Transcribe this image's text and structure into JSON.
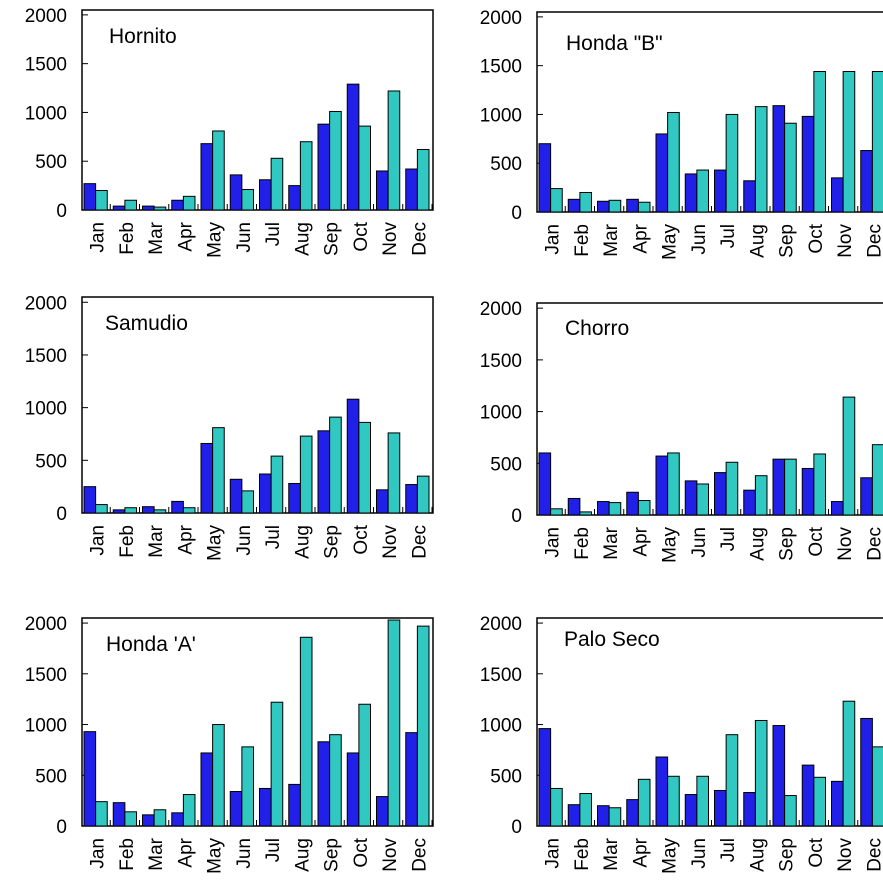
{
  "chart_data": [
    {
      "type": "bar",
      "title": "Hornito",
      "categories": [
        "Jan",
        "Feb",
        "Mar",
        "Apr",
        "May",
        "Jun",
        "Jul",
        "Aug",
        "Sep",
        "Oct",
        "Nov",
        "Dec"
      ],
      "yticks": [
        "0",
        "500",
        "1000",
        "1500",
        "2000"
      ],
      "ylim": [
        0,
        2050
      ],
      "series": [
        {
          "values": [
            270,
            40,
            40,
            100,
            680,
            360,
            310,
            250,
            880,
            1290,
            400,
            420
          ],
          "color": "#2020e8"
        },
        {
          "values": [
            200,
            100,
            30,
            140,
            810,
            210,
            530,
            700,
            1010,
            860,
            1220,
            620
          ],
          "color": "#30c8c0"
        }
      ]
    },
    {
      "type": "bar",
      "title": "Honda \"B\"",
      "categories": [
        "Jan",
        "Feb",
        "Mar",
        "Apr",
        "May",
        "Jun",
        "Jul",
        "Aug",
        "Sep",
        "Oct",
        "Nov",
        "Dec"
      ],
      "yticks": [
        "0",
        "500",
        "1000",
        "1500",
        "2000"
      ],
      "ylim": [
        0,
        2050
      ],
      "series": [
        {
          "values": [
            700,
            130,
            110,
            130,
            800,
            390,
            430,
            320,
            1090,
            980,
            350,
            630
          ],
          "color": "#2020e8"
        },
        {
          "values": [
            240,
            200,
            120,
            100,
            1020,
            430,
            1000,
            1080,
            910,
            1440,
            1440,
            1440
          ],
          "color": "#30c8c0"
        }
      ]
    },
    {
      "type": "bar",
      "title": "Samudio",
      "categories": [
        "Jan",
        "Feb",
        "Mar",
        "Apr",
        "May",
        "Jun",
        "Jul",
        "Aug",
        "Sep",
        "Oct",
        "Nov",
        "Dec"
      ],
      "yticks": [
        "0",
        "500",
        "1000",
        "1500",
        "2000"
      ],
      "ylim": [
        0,
        2050
      ],
      "series": [
        {
          "values": [
            250,
            30,
            60,
            110,
            660,
            320,
            370,
            280,
            780,
            1080,
            220,
            270
          ],
          "color": "#2020e8"
        },
        {
          "values": [
            80,
            50,
            30,
            50,
            810,
            210,
            540,
            730,
            910,
            860,
            760,
            350
          ],
          "color": "#30c8c0"
        }
      ]
    },
    {
      "type": "bar",
      "title": "Chorro",
      "categories": [
        "Jan",
        "Feb",
        "Mar",
        "Apr",
        "May",
        "Jun",
        "Jul",
        "Aug",
        "Sep",
        "Oct",
        "Nov",
        "Dec"
      ],
      "yticks": [
        "0",
        "500",
        "1000",
        "1500",
        "2000"
      ],
      "ylim": [
        0,
        2050
      ],
      "series": [
        {
          "values": [
            600,
            160,
            130,
            220,
            570,
            330,
            410,
            240,
            540,
            450,
            130,
            360
          ],
          "color": "#2020e8"
        },
        {
          "values": [
            60,
            30,
            120,
            140,
            600,
            300,
            510,
            380,
            540,
            590,
            1140,
            680
          ],
          "color": "#30c8c0"
        }
      ]
    },
    {
      "type": "bar",
      "title": "Honda 'A'",
      "categories": [
        "Jan",
        "Feb",
        "Mar",
        "Apr",
        "May",
        "Jun",
        "Jul",
        "Aug",
        "Sep",
        "Oct",
        "Nov",
        "Dec"
      ],
      "yticks": [
        "0",
        "500",
        "1000",
        "1500",
        "2000"
      ],
      "ylim": [
        0,
        2050
      ],
      "series": [
        {
          "values": [
            930,
            230,
            110,
            130,
            720,
            340,
            370,
            410,
            830,
            720,
            290,
            920
          ],
          "color": "#2020e8"
        },
        {
          "values": [
            240,
            140,
            160,
            310,
            1000,
            780,
            1220,
            1860,
            900,
            1200,
            2030,
            1970
          ],
          "color": "#30c8c0"
        }
      ]
    },
    {
      "type": "bar",
      "title": "Palo Seco",
      "categories": [
        "Jan",
        "Feb",
        "Mar",
        "Apr",
        "May",
        "Jun",
        "Jul",
        "Aug",
        "Sep",
        "Oct",
        "Nov",
        "Dec"
      ],
      "yticks": [
        "0",
        "500",
        "1000",
        "1500",
        "2000"
      ],
      "ylim": [
        0,
        2050
      ],
      "series": [
        {
          "values": [
            960,
            210,
            200,
            260,
            680,
            310,
            350,
            330,
            990,
            600,
            440,
            1060
          ],
          "color": "#2020e8"
        },
        {
          "values": [
            370,
            320,
            180,
            460,
            490,
            490,
            900,
            1040,
            300,
            480,
            1230,
            780
          ],
          "color": "#30c8c0"
        }
      ]
    }
  ]
}
